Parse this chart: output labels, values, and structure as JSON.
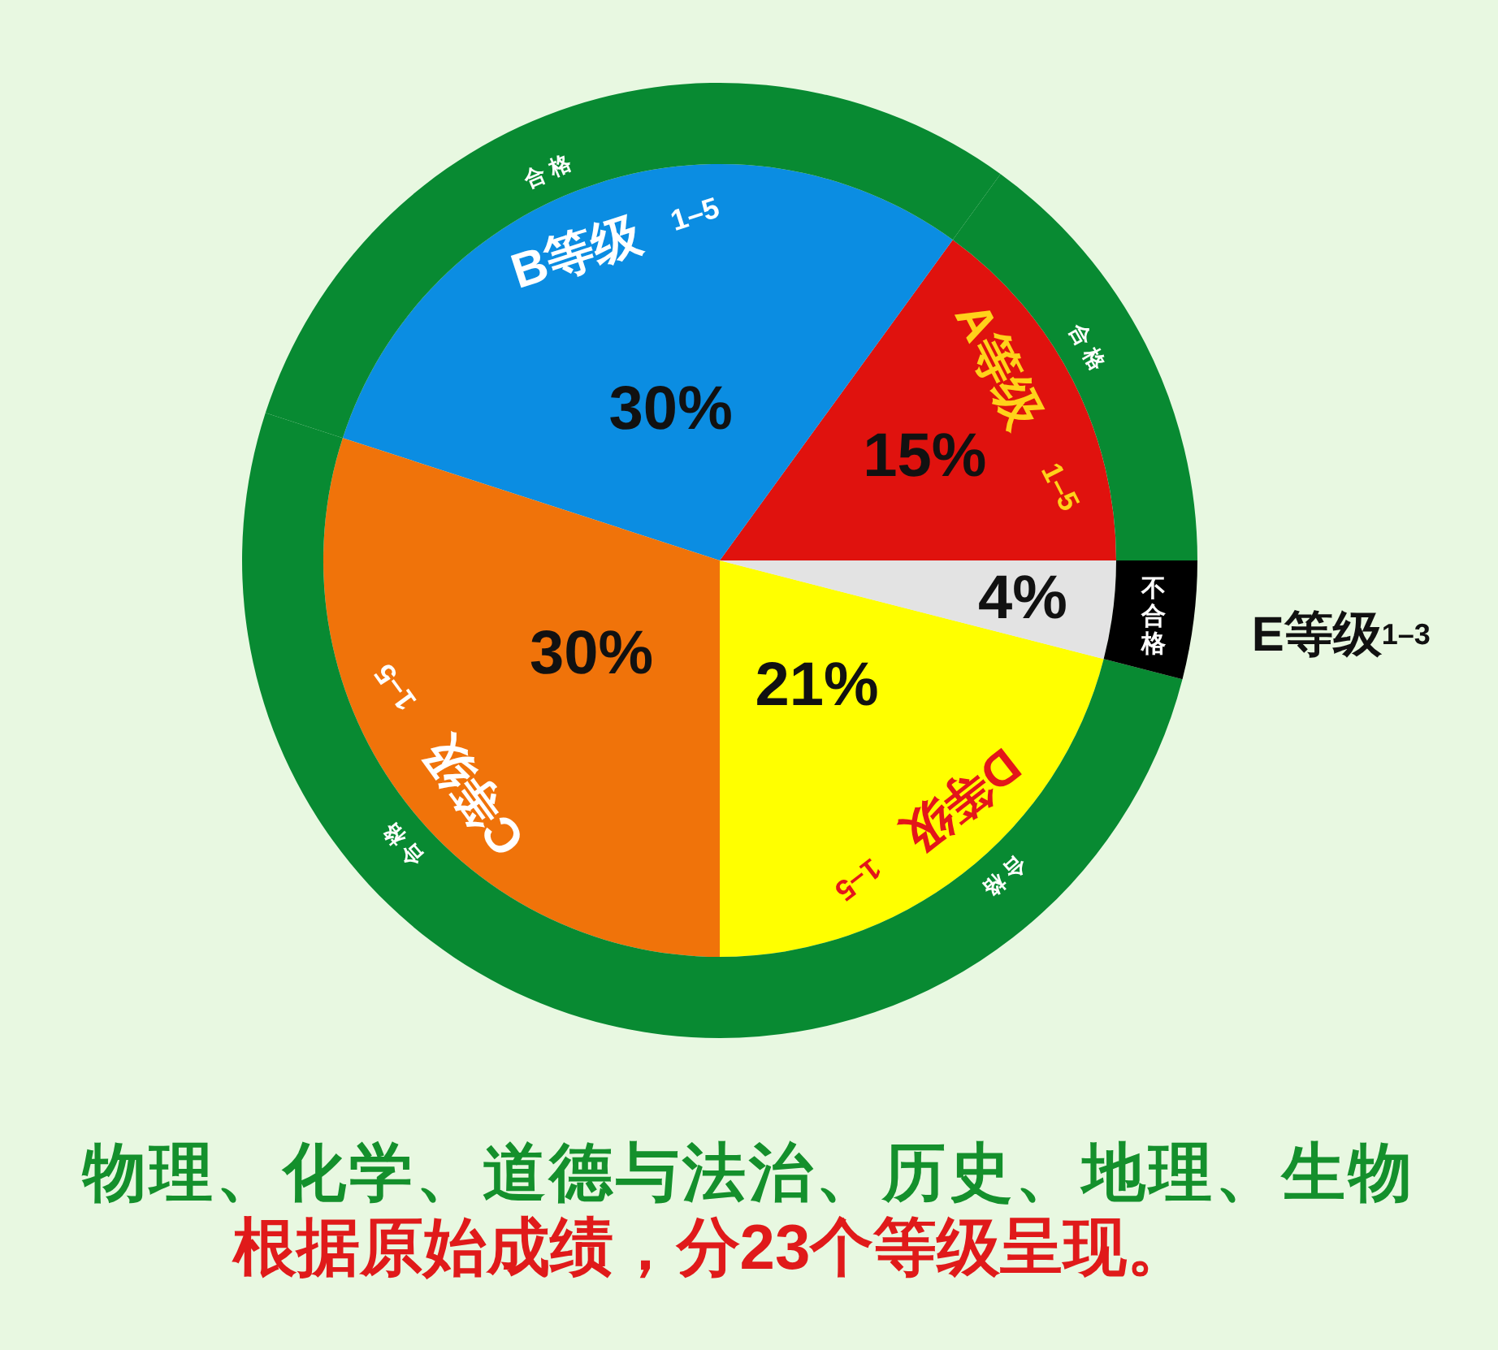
{
  "chart_data": {
    "type": "pie",
    "title": "物理、化学、道德与法治、历史、地理、生物",
    "subtitle": "根据原始成绩，分23个等级呈现。",
    "categories": [
      "A等级 1–5",
      "B等级 1–5",
      "C等级 1–5",
      "D等级 1–5",
      "E等级1–3"
    ],
    "series": [
      {
        "type": "pie",
        "values": [
          15,
          30,
          30,
          21,
          4
        ],
        "colors": [
          "#e0120e",
          "#0b8de2",
          "#f0730a",
          "#ffff00",
          "#e3e3e3"
        ],
        "value_labels": [
          "15%",
          "30%",
          "30%",
          "21%",
          "4%"
        ]
      },
      {
        "type": "donut",
        "values": [
          15,
          30,
          30,
          21,
          4
        ],
        "colors": [
          "#088a32",
          "#088a32",
          "#088a32",
          "#088a32",
          "#000000"
        ],
        "value_labels": [
          "合格",
          "合格",
          "合格",
          "合格",
          "不合格"
        ]
      }
    ]
  }
}
